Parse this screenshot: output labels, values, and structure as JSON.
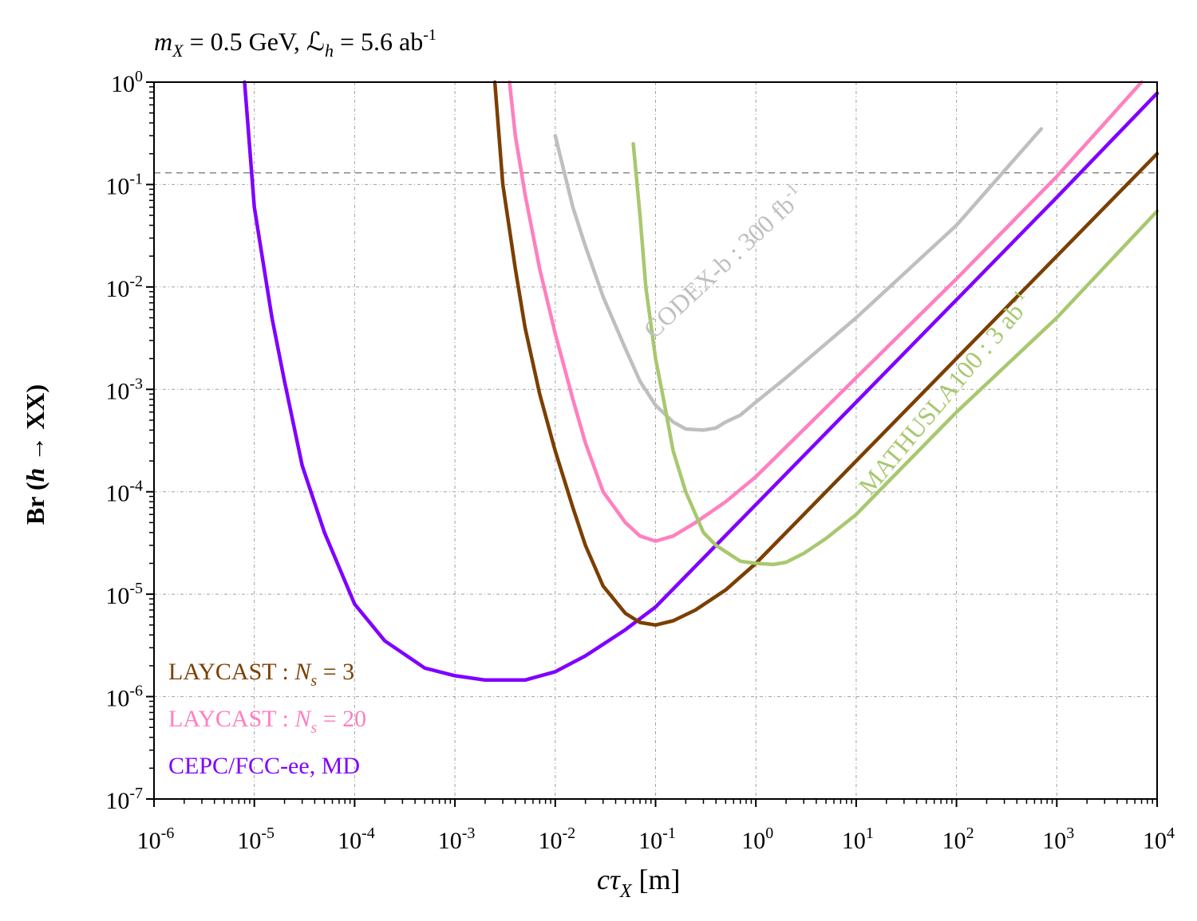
{
  "chart_data": {
    "type": "line",
    "title": {
      "m_sym": "m",
      "m_sub": "X",
      "mid": " = 0.5 GeV, ",
      "L_sym": "ℒ",
      "L_sub": "h",
      "end": " = 5.6 ab",
      "end_sup": "-1"
    },
    "xlabel": {
      "c": "c",
      "tau": "τ",
      "sub": "X",
      "unit": " [m]"
    },
    "ylabel": {
      "pre": "Br (",
      "h": "h",
      "post": " → XX)"
    },
    "x_scale": "log",
    "y_scale": "log",
    "xlim": [
      1e-06,
      10000.0
    ],
    "ylim": [
      1e-07,
      1
    ],
    "x_ticks": [
      {
        "base": "10",
        "exp": "-6"
      },
      {
        "base": "10",
        "exp": "-5"
      },
      {
        "base": "10",
        "exp": "-4"
      },
      {
        "base": "10",
        "exp": "-3"
      },
      {
        "base": "10",
        "exp": "-2"
      },
      {
        "base": "10",
        "exp": "-1"
      },
      {
        "base": "10",
        "exp": "0"
      },
      {
        "base": "10",
        "exp": "1"
      },
      {
        "base": "10",
        "exp": "2"
      },
      {
        "base": "10",
        "exp": "3"
      },
      {
        "base": "10",
        "exp": "4"
      }
    ],
    "y_ticks": [
      {
        "base": "10",
        "exp": "-7"
      },
      {
        "base": "10",
        "exp": "-6"
      },
      {
        "base": "10",
        "exp": "-5"
      },
      {
        "base": "10",
        "exp": "-4"
      },
      {
        "base": "10",
        "exp": "-3"
      },
      {
        "base": "10",
        "exp": "-2"
      },
      {
        "base": "10",
        "exp": "-1"
      },
      {
        "base": "10",
        "exp": "0"
      }
    ],
    "grid": true,
    "reference_line": {
      "y": 0.13,
      "style": "dashed",
      "color": "#888888"
    },
    "series": [
      {
        "name": "CEPC/FCC-ee, MD",
        "color": "#7F00FF",
        "x": [
          8e-06,
          1e-05,
          1.5e-05,
          2e-05,
          3e-05,
          5e-05,
          0.0001,
          0.0002,
          0.0005,
          0.001,
          0.002,
          0.005,
          0.01,
          0.02,
          0.05,
          0.1,
          1,
          10,
          100,
          1000,
          10000
        ],
        "y": [
          1,
          0.06,
          0.005,
          0.0012,
          0.00018,
          4e-05,
          8e-06,
          3.5e-06,
          1.9e-06,
          1.6e-06,
          1.45e-06,
          1.45e-06,
          1.75e-06,
          2.5e-06,
          4.5e-06,
          7.5e-06,
          7.5e-05,
          0.00075,
          0.0075,
          0.075,
          0.78
        ]
      },
      {
        "name": "LAYCAST : N_s = 3",
        "color": "#7B3F00",
        "x": [
          0.0025,
          0.003,
          0.004,
          0.005,
          0.007,
          0.01,
          0.015,
          0.02,
          0.03,
          0.05,
          0.07,
          0.1,
          0.15,
          0.25,
          0.5,
          1,
          10,
          100,
          1000,
          10000
        ],
        "y": [
          1,
          0.1,
          0.015,
          0.004,
          0.0009,
          0.00025,
          7e-05,
          3e-05,
          1.2e-05,
          6.5e-06,
          5.3e-06,
          5e-06,
          5.5e-06,
          7e-06,
          1.1e-05,
          2e-05,
          0.0002,
          0.002,
          0.02,
          0.2
        ]
      },
      {
        "name": "LAYCAST : N_s = 20",
        "color": "#FF7FBF",
        "x": [
          0.0035,
          0.004,
          0.005,
          0.007,
          0.01,
          0.015,
          0.02,
          0.03,
          0.05,
          0.07,
          0.1,
          0.15,
          0.25,
          0.5,
          1,
          10,
          100,
          1000,
          7000
        ],
        "y": [
          1,
          0.3,
          0.08,
          0.015,
          0.0035,
          0.0008,
          0.0003,
          0.0001,
          5e-05,
          3.7e-05,
          3.3e-05,
          3.7e-05,
          5e-05,
          8e-05,
          0.00014,
          0.0013,
          0.012,
          0.12,
          1
        ]
      },
      {
        "name": "CODEX-b : 300 fb^-1",
        "color": "#BFBFBF",
        "x": [
          0.01,
          0.015,
          0.02,
          0.03,
          0.05,
          0.07,
          0.1,
          0.15,
          0.2,
          0.3,
          0.4,
          0.5,
          0.7,
          1,
          2,
          10,
          100,
          700
        ],
        "y": [
          0.3,
          0.06,
          0.025,
          0.008,
          0.0025,
          0.0012,
          0.0007,
          0.00048,
          0.00041,
          0.0004,
          0.00042,
          0.00048,
          0.00056,
          0.00075,
          0.0013,
          0.005,
          0.04,
          0.35
        ]
      },
      {
        "name": "MATHUSLA100 : 3 ab^-1",
        "color": "#A8C870",
        "x": [
          0.06,
          0.07,
          0.08,
          0.1,
          0.12,
          0.15,
          0.2,
          0.3,
          0.4,
          0.5,
          0.7,
          1,
          1.5,
          2,
          3,
          5,
          10,
          20,
          100,
          1000,
          10000
        ],
        "y": [
          0.25,
          0.05,
          0.01,
          0.002,
          0.0008,
          0.00025,
          0.0001,
          4e-05,
          3e-05,
          2.6e-05,
          2.1e-05,
          2e-05,
          1.95e-05,
          2.05e-05,
          2.5e-05,
          3.5e-05,
          6e-05,
          0.00012,
          0.0006,
          0.005,
          0.055
        ]
      }
    ],
    "legend": {
      "placement": "bottom-left",
      "entries": [
        {
          "pre": "LAYCAST : ",
          "sym": "N",
          "sub": "s",
          "post": " = 3",
          "color": "#7B3F00"
        },
        {
          "pre": "LAYCAST : ",
          "sym": "N",
          "sub": "s",
          "post": " = 20",
          "color": "#FF7FBF"
        },
        {
          "pre": "CEPC/FCC-ee, MD",
          "sym": "",
          "sub": "",
          "post": "",
          "color": "#7F00FF"
        }
      ]
    },
    "annotations": [
      {
        "text": "CODEX-b : 300 fb",
        "sup": "-1",
        "color": "#BFBFBF",
        "x": 0.55,
        "y": 0.015,
        "angle_deg": -43
      },
      {
        "text": "MATHUSLA100 : 3 ab",
        "sup": "-1",
        "color": "#A8C870",
        "x": 90,
        "y": 0.0008,
        "angle_deg": -50
      }
    ]
  }
}
